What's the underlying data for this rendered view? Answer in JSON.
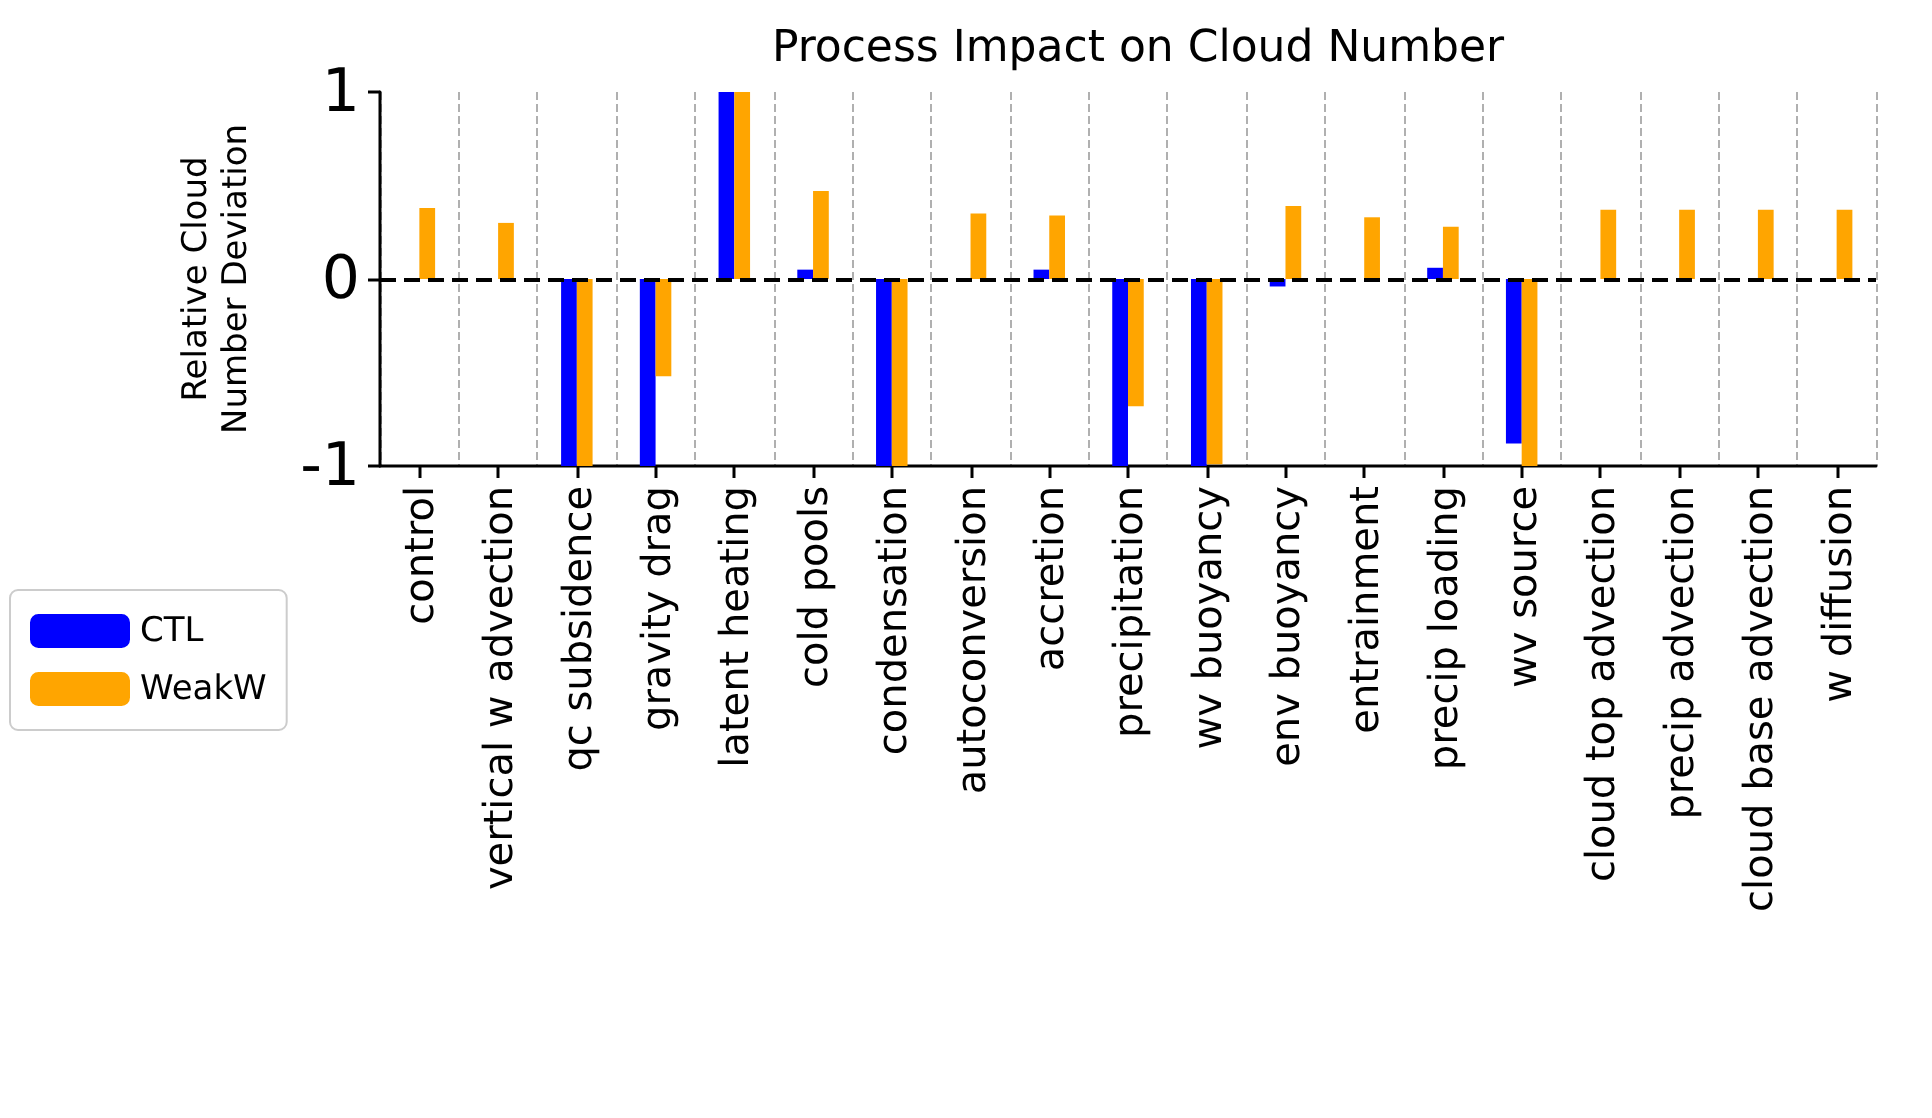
{
  "chart_data": {
    "type": "bar",
    "title": "Process Impact on Cloud Number",
    "ylabel": "Relative Cloud\nNumber Deviation",
    "categories": [
      "control",
      "vertical w advection",
      "qc subsidence",
      "gravity drag",
      "latent heating",
      "cold pools",
      "condensation",
      "autoconversion",
      "accretion",
      "precipitation",
      "wv buoyancy",
      "env buoyancy",
      "entrainment",
      "precip loading",
      "wv source",
      "cloud top advection",
      "precip advection",
      "cloud base advection",
      "w diffusion"
    ],
    "series": [
      {
        "name": "CTL",
        "color": "#0000ff",
        "values": [
          0,
          null,
          -1,
          -1,
          1,
          0.05,
          -1,
          0,
          0.05,
          -1,
          -1,
          -0.04,
          0,
          0.06,
          -0.88,
          0,
          0,
          0,
          0
        ]
      },
      {
        "name": "WeakW",
        "color": "#ffa500",
        "values": [
          0.38,
          0.3,
          -1,
          -0.52,
          1,
          0.47,
          -1,
          0.35,
          0.34,
          -0.68,
          -0.99,
          0.39,
          0.33,
          0.28,
          -1,
          0.37,
          0.37,
          0.37,
          0.37
        ]
      }
    ],
    "ylim": [
      -1,
      1
    ],
    "yticks": [
      -1,
      0,
      1
    ],
    "grid": "x",
    "legend": "left",
    "ref_lines": [
      {
        "axis": "y",
        "value": 0,
        "color": "#000000",
        "line_style": "dashed"
      }
    ]
  }
}
